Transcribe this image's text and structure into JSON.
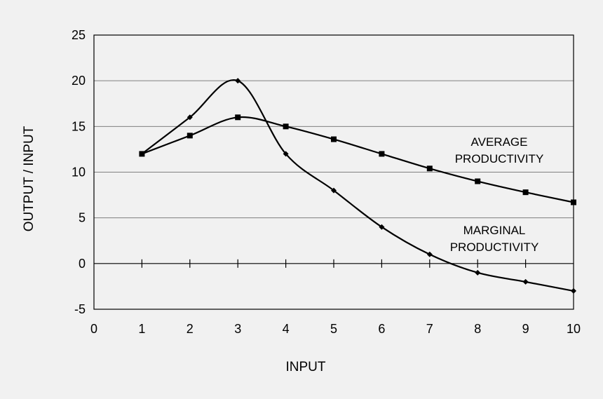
{
  "chart_data": {
    "type": "line",
    "title": "",
    "xlabel": "INPUT",
    "ylabel": "OUTPUT / INPUT",
    "xlim": [
      0,
      10
    ],
    "ylim": [
      -5,
      25
    ],
    "x_ticks": [
      "0",
      "1",
      "2",
      "3",
      "4",
      "5",
      "6",
      "7",
      "8",
      "9",
      "10"
    ],
    "y_ticks": [
      "-5",
      "0",
      "5",
      "10",
      "15",
      "20",
      "25"
    ],
    "grid": "horizontal",
    "legend": "none",
    "series": [
      {
        "name": "AVERAGE PRODUCTIVITY",
        "marker": "square",
        "x": [
          1,
          2,
          3,
          4,
          5,
          6,
          7,
          8,
          9,
          10
        ],
        "y": [
          12,
          14,
          16,
          15,
          13.6,
          12,
          10.4,
          9,
          7.8,
          6.7
        ]
      },
      {
        "name": "MARGINAL PRODUCTIVITY",
        "marker": "diamond",
        "x": [
          1,
          2,
          3,
          4,
          5,
          6,
          7,
          8,
          9,
          10
        ],
        "y": [
          12,
          16,
          20,
          12,
          8,
          4,
          1,
          -1,
          -2,
          -3
        ]
      }
    ],
    "annotations": [
      {
        "lines": [
          "AVERAGE",
          "PRODUCTIVITY"
        ]
      },
      {
        "lines": [
          "MARGINAL",
          "PRODUCTIVITY"
        ]
      }
    ],
    "colors": {
      "line": "#000000",
      "grid": "#808080",
      "background": "#f1f1f1"
    }
  }
}
